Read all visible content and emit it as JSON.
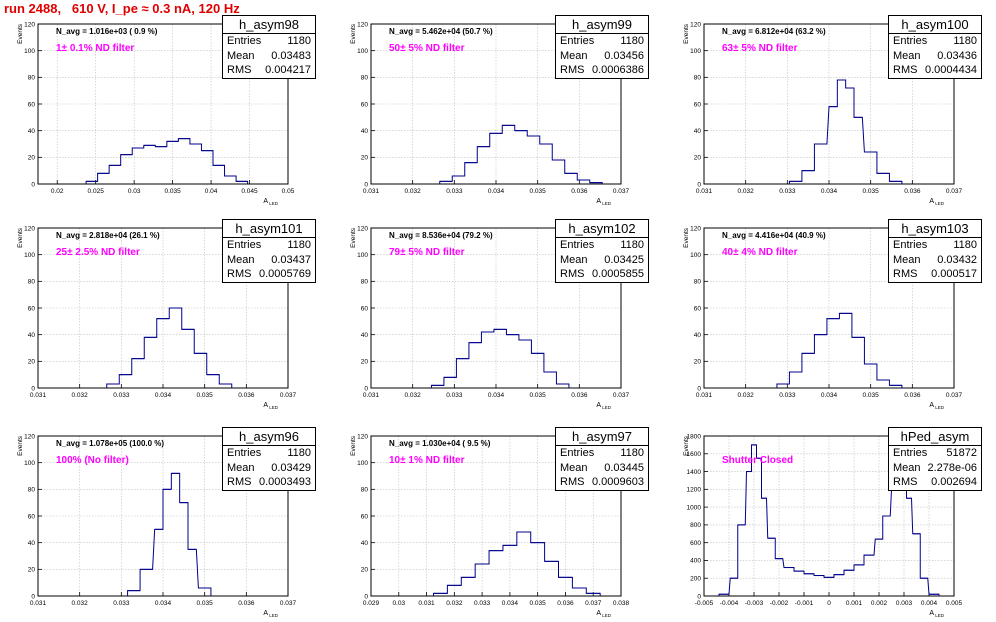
{
  "header": {
    "title": "run 2488,   610 V, I_pe ≈ 0.3 nA, 120 Hz"
  },
  "colors": {
    "histogram": "#00008b",
    "title": "#e00000",
    "annotation": "#ff00ff",
    "grid": "#bfbfbf"
  },
  "chart_data": [
    {
      "type": "histogram",
      "name": "h_asym98",
      "navg": "N_avg = 1.016e+03 ( 0.9 %)",
      "filter_label": "1± 0.1% ND filter",
      "stats": [
        [
          "Entries",
          "1180"
        ],
        [
          "Mean",
          "0.03483"
        ],
        [
          "RMS",
          "0.004217"
        ]
      ],
      "ylabel": "Events",
      "xlabel": "A_{LED}",
      "xlim": [
        0.0175,
        0.05
      ],
      "ylim": [
        0,
        120
      ],
      "xticks": [
        "0.02",
        "0.025",
        "0.03",
        "0.035",
        "0.04",
        "0.045",
        "0.05"
      ],
      "xtick_values": [
        0.02,
        0.025,
        0.03,
        0.035,
        0.04,
        0.045,
        0.05
      ],
      "yticks": [
        "0",
        "20",
        "40",
        "60",
        "80",
        "100",
        "120"
      ],
      "ytick_values": [
        0,
        20,
        40,
        60,
        80,
        100,
        120
      ],
      "x": [
        0.0245,
        0.026,
        0.0275,
        0.029,
        0.0305,
        0.032,
        0.0335,
        0.035,
        0.0365,
        0.038,
        0.0395,
        0.041,
        0.0425,
        0.044
      ],
      "y": [
        2,
        8,
        14,
        22,
        27,
        29,
        28,
        32,
        34,
        30,
        25,
        14,
        6,
        2
      ]
    },
    {
      "type": "histogram",
      "name": "h_asym99",
      "navg": "N_avg = 5.462e+04 (50.7 %)",
      "filter_label": "50± 5% ND filter",
      "stats": [
        [
          "Entries",
          "1180"
        ],
        [
          "Mean",
          "0.03456"
        ],
        [
          "RMS",
          "0.0006386"
        ]
      ],
      "ylabel": "Events",
      "xlabel": "A_{LED}",
      "xlim": [
        0.031,
        0.037
      ],
      "ylim": [
        0,
        120
      ],
      "xticks": [
        "0.031",
        "0.032",
        "0.033",
        "0.034",
        "0.035",
        "0.036",
        "0.037"
      ],
      "xtick_values": [
        0.031,
        0.032,
        0.033,
        0.034,
        0.035,
        0.036,
        0.037
      ],
      "yticks": [
        "0",
        "20",
        "40",
        "60",
        "80",
        "100",
        "120"
      ],
      "ytick_values": [
        0,
        20,
        40,
        60,
        80,
        100,
        120
      ],
      "x": [
        0.0328,
        0.0331,
        0.0334,
        0.0337,
        0.034,
        0.0343,
        0.0346,
        0.0349,
        0.0352,
        0.0355,
        0.0358,
        0.0361,
        0.0364
      ],
      "y": [
        2,
        6,
        16,
        28,
        38,
        44,
        40,
        36,
        30,
        18,
        8,
        3,
        1
      ]
    },
    {
      "type": "histogram",
      "name": "h_asym100",
      "navg": "N_avg = 6.812e+04 (63.2 %)",
      "filter_label": "63± 5% ND filter",
      "stats": [
        [
          "Entries",
          "1180"
        ],
        [
          "Mean",
          "0.03436"
        ],
        [
          "RMS",
          "0.0004434"
        ]
      ],
      "ylabel": "Events",
      "xlabel": "A_{LED}",
      "xlim": [
        0.031,
        0.037
      ],
      "ylim": [
        0,
        120
      ],
      "xticks": [
        "0.031",
        "0.032",
        "0.033",
        "0.034",
        "0.035",
        "0.036",
        "0.037"
      ],
      "xtick_values": [
        0.031,
        0.032,
        0.033,
        0.034,
        0.035,
        0.036,
        0.037
      ],
      "yticks": [
        "0",
        "20",
        "40",
        "60",
        "80",
        "100",
        "120"
      ],
      "ytick_values": [
        0,
        20,
        40,
        60,
        80,
        100,
        120
      ],
      "x": [
        0.0332,
        0.0335,
        0.0338,
        0.0341,
        0.0343,
        0.0345,
        0.0347,
        0.035,
        0.0353,
        0.0356
      ],
      "y": [
        2,
        10,
        30,
        58,
        78,
        72,
        50,
        24,
        8,
        2
      ]
    },
    {
      "type": "histogram",
      "name": "h_asym101",
      "navg": "N_avg = 2.818e+04 (26.1 %)",
      "filter_label": "25± 2.5% ND filter",
      "stats": [
        [
          "Entries",
          "1180"
        ],
        [
          "Mean",
          "0.03437"
        ],
        [
          "RMS",
          "0.0005769"
        ]
      ],
      "ylabel": "Events",
      "xlabel": "A_{LED}",
      "xlim": [
        0.031,
        0.037
      ],
      "ylim": [
        0,
        120
      ],
      "xticks": [
        "0.031",
        "0.032",
        "0.033",
        "0.034",
        "0.035",
        "0.036",
        "0.037"
      ],
      "xtick_values": [
        0.031,
        0.032,
        0.033,
        0.034,
        0.035,
        0.036,
        0.037
      ],
      "yticks": [
        "0",
        "20",
        "40",
        "60",
        "80",
        "100",
        "120"
      ],
      "ytick_values": [
        0,
        20,
        40,
        60,
        80,
        100,
        120
      ],
      "x": [
        0.0328,
        0.0331,
        0.0334,
        0.0337,
        0.034,
        0.0343,
        0.0346,
        0.0349,
        0.0352,
        0.0355
      ],
      "y": [
        3,
        10,
        22,
        38,
        52,
        60,
        44,
        26,
        10,
        3
      ]
    },
    {
      "type": "histogram",
      "name": "h_asym102",
      "navg": "N_avg = 8.536e+04 (79.2 %)",
      "filter_label": "79± 5% ND filter",
      "stats": [
        [
          "Entries",
          "1180"
        ],
        [
          "Mean",
          "0.03425"
        ],
        [
          "RMS",
          "0.0005855"
        ]
      ],
      "ylabel": "Events",
      "xlabel": "A_{LED}",
      "xlim": [
        0.031,
        0.037
      ],
      "ylim": [
        0,
        120
      ],
      "xticks": [
        "0.031",
        "0.032",
        "0.033",
        "0.034",
        "0.035",
        "0.036",
        "0.037"
      ],
      "xtick_values": [
        0.031,
        0.032,
        0.033,
        0.034,
        0.035,
        0.036,
        0.037
      ],
      "yticks": [
        "0",
        "20",
        "40",
        "60",
        "80",
        "100",
        "120"
      ],
      "ytick_values": [
        0,
        20,
        40,
        60,
        80,
        100,
        120
      ],
      "x": [
        0.0326,
        0.0329,
        0.0332,
        0.0335,
        0.0338,
        0.0341,
        0.0344,
        0.0347,
        0.035,
        0.0353,
        0.0356
      ],
      "y": [
        2,
        8,
        22,
        34,
        42,
        44,
        40,
        36,
        26,
        12,
        3
      ]
    },
    {
      "type": "histogram",
      "name": "h_asym103",
      "navg": "N_avg = 4.416e+04 (40.9 %)",
      "filter_label": "40± 4% ND filter",
      "stats": [
        [
          "Entries",
          "1180"
        ],
        [
          "Mean",
          "0.03432"
        ],
        [
          "RMS",
          "0.000517"
        ]
      ],
      "ylabel": "Events",
      "xlabel": "A_{LED}",
      "xlim": [
        0.031,
        0.037
      ],
      "ylim": [
        0,
        120
      ],
      "xticks": [
        "0.031",
        "0.032",
        "0.033",
        "0.034",
        "0.035",
        "0.036",
        "0.037"
      ],
      "xtick_values": [
        0.031,
        0.032,
        0.033,
        0.034,
        0.035,
        0.036,
        0.037
      ],
      "yticks": [
        "0",
        "20",
        "40",
        "60",
        "80",
        "100",
        "120"
      ],
      "ytick_values": [
        0,
        20,
        40,
        60,
        80,
        100,
        120
      ],
      "x": [
        0.0329,
        0.0332,
        0.0335,
        0.0338,
        0.0341,
        0.0344,
        0.0347,
        0.035,
        0.0353,
        0.0356
      ],
      "y": [
        3,
        12,
        26,
        40,
        52,
        56,
        38,
        18,
        6,
        2
      ]
    },
    {
      "type": "histogram",
      "name": "h_asym96",
      "navg": "N_avg = 1.078e+05 (100.0 %)",
      "filter_label": "100% (No filter)",
      "stats": [
        [
          "Entries",
          "1180"
        ],
        [
          "Mean",
          "0.03429"
        ],
        [
          "RMS",
          "0.0003493"
        ]
      ],
      "ylabel": "Events",
      "xlabel": "A_{LED}",
      "xlim": [
        0.031,
        0.037
      ],
      "ylim": [
        0,
        120
      ],
      "xticks": [
        "0.031",
        "0.032",
        "0.033",
        "0.034",
        "0.035",
        "0.036",
        "0.037"
      ],
      "xtick_values": [
        0.031,
        0.032,
        0.033,
        0.034,
        0.035,
        0.036,
        0.037
      ],
      "yticks": [
        "0",
        "20",
        "40",
        "60",
        "80",
        "100",
        "120"
      ],
      "ytick_values": [
        0,
        20,
        40,
        60,
        80,
        100,
        120
      ],
      "x": [
        0.0333,
        0.0336,
        0.0339,
        0.0341,
        0.0343,
        0.0345,
        0.0347,
        0.035
      ],
      "y": [
        4,
        20,
        50,
        80,
        92,
        70,
        35,
        6
      ]
    },
    {
      "type": "histogram",
      "name": "h_asym97",
      "navg": "N_avg = 1.030e+04 ( 9.5 %)",
      "filter_label": "10± 1% ND filter",
      "stats": [
        [
          "Entries",
          "1180"
        ],
        [
          "Mean",
          "0.03445"
        ],
        [
          "RMS",
          "0.0009603"
        ]
      ],
      "ylabel": "Events",
      "xlabel": "A_{LED}",
      "xlim": [
        0.029,
        0.038
      ],
      "ylim": [
        0,
        120
      ],
      "xticks": [
        "0.029",
        "0.03",
        "0.031",
        "0.032",
        "0.033",
        "0.034",
        "0.035",
        "0.036",
        "0.037",
        "0.038"
      ],
      "xtick_values": [
        0.029,
        0.03,
        0.031,
        0.032,
        0.033,
        0.034,
        0.035,
        0.036,
        0.037,
        0.038
      ],
      "yticks": [
        "0",
        "20",
        "40",
        "60",
        "80",
        "100",
        "120"
      ],
      "ytick_values": [
        0,
        20,
        40,
        60,
        80,
        100,
        120
      ],
      "x": [
        0.0315,
        0.032,
        0.0325,
        0.033,
        0.0335,
        0.034,
        0.0345,
        0.035,
        0.0355,
        0.036,
        0.0365,
        0.037
      ],
      "y": [
        2,
        8,
        14,
        24,
        34,
        38,
        48,
        40,
        26,
        14,
        6,
        2
      ]
    },
    {
      "type": "histogram",
      "name": "hPed_asym",
      "navg": "",
      "filter_label": "Shutter Closed",
      "stats": [
        [
          "Entries",
          "51872"
        ],
        [
          "Mean",
          "2.278e-06"
        ],
        [
          "RMS",
          "0.002694"
        ]
      ],
      "ylabel": "Events",
      "xlabel": "A_{LED}",
      "xlim": [
        -0.005,
        0.005
      ],
      "ylim": [
        0,
        1800
      ],
      "xticks": [
        "-0.005",
        "-0.004",
        "-0.003",
        "-0.002",
        "-0.001",
        "0",
        "0.001",
        "0.002",
        "0.003",
        "0.004",
        "0.005"
      ],
      "xtick_values": [
        -0.005,
        -0.004,
        -0.003,
        -0.002,
        -0.001,
        0,
        0.001,
        0.002,
        0.003,
        0.004,
        0.005
      ],
      "yticks": [
        "0",
        "200",
        "400",
        "600",
        "800",
        "1000",
        "1200",
        "1400",
        "1600",
        "1800"
      ],
      "ytick_values": [
        0,
        200,
        400,
        600,
        800,
        1000,
        1200,
        1400,
        1600,
        1800
      ],
      "x": [
        -0.0042,
        -0.0038,
        -0.0035,
        -0.0032,
        -0.003,
        -0.0028,
        -0.0026,
        -0.0023,
        -0.002,
        -0.0016,
        -0.0012,
        -0.0008,
        -0.0004,
        0,
        0.0004,
        0.0008,
        0.0012,
        0.0016,
        0.002,
        0.0023,
        0.0026,
        0.0028,
        0.003,
        0.0032,
        0.0035,
        0.0038,
        0.0042
      ],
      "y": [
        20,
        200,
        800,
        1400,
        1700,
        1550,
        1100,
        650,
        420,
        320,
        280,
        250,
        230,
        210,
        240,
        290,
        350,
        460,
        640,
        900,
        1200,
        1350,
        1300,
        1100,
        700,
        200,
        20
      ]
    }
  ]
}
